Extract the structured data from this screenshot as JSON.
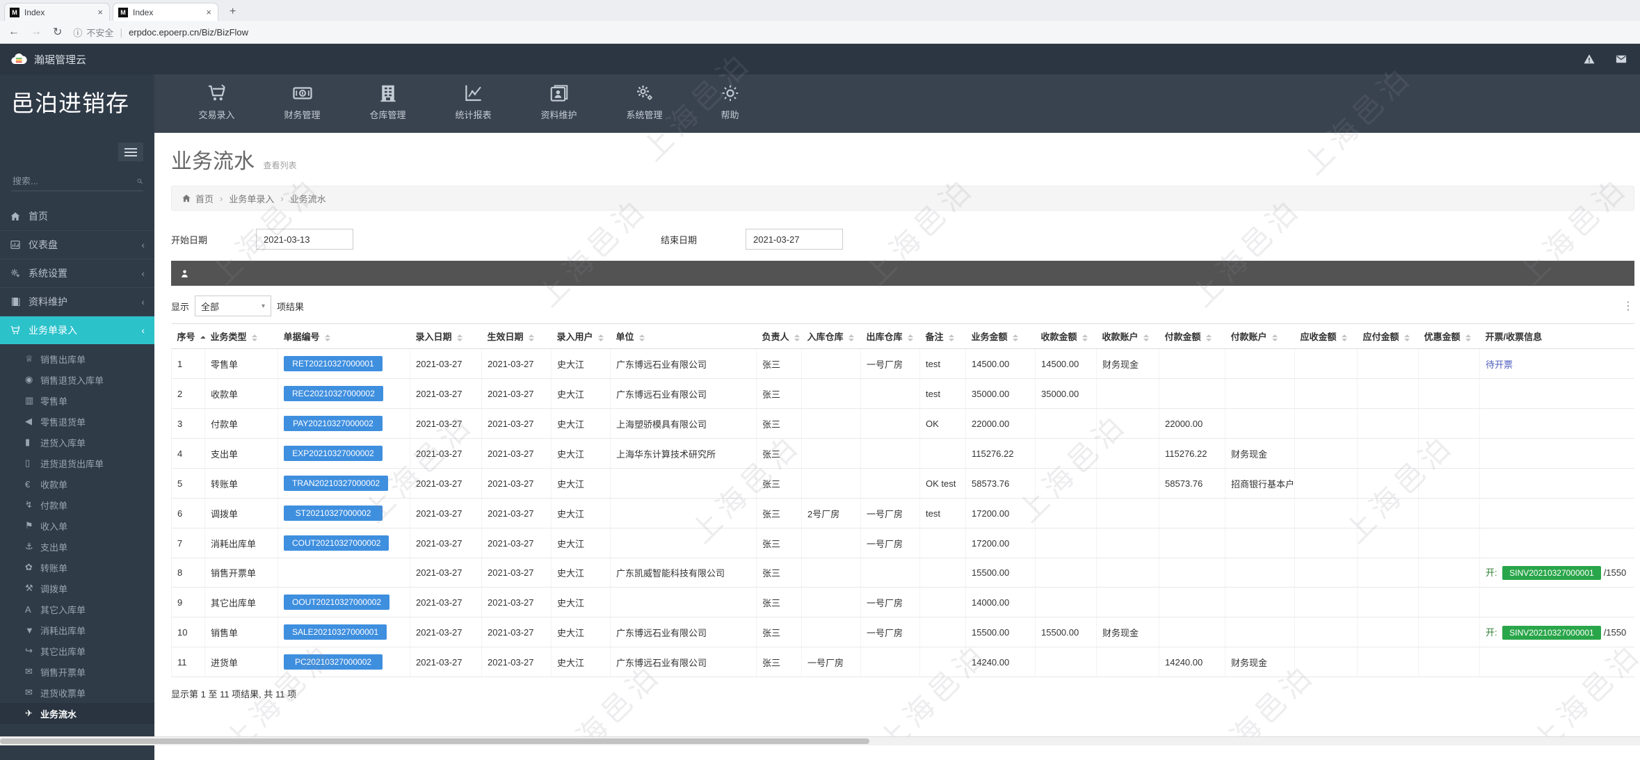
{
  "browser": {
    "tabs": [
      {
        "title": "Index"
      },
      {
        "title": "Index"
      }
    ],
    "new_tab": "+",
    "security_label": "不安全",
    "url": "erpdoc.epoerp.cn/Biz/BizFlow"
  },
  "header": {
    "app_title": "瀚琚管理云",
    "right_icons": [
      "warning-icon",
      "mail-icon"
    ]
  },
  "brand": {
    "title": "邑泊进销存"
  },
  "topnav": {
    "items": [
      {
        "label": "交易录入",
        "icon": "cart-icon"
      },
      {
        "label": "财务管理",
        "icon": "money-icon"
      },
      {
        "label": "仓库管理",
        "icon": "warehouse-icon"
      },
      {
        "label": "统计报表",
        "icon": "report-icon"
      },
      {
        "label": "资料维护",
        "icon": "idcard-icon"
      },
      {
        "label": "系统管理",
        "icon": "gears-icon"
      },
      {
        "label": "帮助",
        "icon": "help-icon"
      }
    ]
  },
  "sidebar": {
    "search_placeholder": "搜索...",
    "items": [
      {
        "label": "首页",
        "icon": "home-icon",
        "chevron": false,
        "active": false
      },
      {
        "label": "仪表盘",
        "icon": "dashboard-icon",
        "chevron": true,
        "active": false
      },
      {
        "label": "系统设置",
        "icon": "settings-icon",
        "chevron": true,
        "active": false
      },
      {
        "label": "资料维护",
        "icon": "book-icon",
        "chevron": true,
        "active": false
      },
      {
        "label": "业务单录入",
        "icon": "cart-icon",
        "chevron": true,
        "active": true
      }
    ],
    "subitems": [
      {
        "label": "销售出库单",
        "icon": "trophy-icon",
        "current": false
      },
      {
        "label": "销售退货入库单",
        "icon": "eye-icon",
        "current": false
      },
      {
        "label": "零售单",
        "icon": "barcode-icon",
        "current": false
      },
      {
        "label": "零售退货单",
        "icon": "megaphone-icon",
        "current": false
      },
      {
        "label": "进货入库单",
        "icon": "bookmark-icon",
        "current": false
      },
      {
        "label": "进货退货出库单",
        "icon": "bookmark-outline-icon",
        "current": false
      },
      {
        "label": "收款单",
        "icon": "coin-icon",
        "current": false
      },
      {
        "label": "付款单",
        "icon": "bolt-icon",
        "current": false
      },
      {
        "label": "收入单",
        "icon": "flag-icon",
        "current": false
      },
      {
        "label": "支出单",
        "icon": "anchor-icon",
        "current": false
      },
      {
        "label": "转账单",
        "icon": "leaf-icon",
        "current": false
      },
      {
        "label": "调拨单",
        "icon": "hammer-icon",
        "current": false
      },
      {
        "label": "其它入库单",
        "icon": "letter-a-icon",
        "current": false
      },
      {
        "label": "消耗出库单",
        "icon": "funnel-icon",
        "current": false
      },
      {
        "label": "其它出库单",
        "icon": "share-icon",
        "current": false
      },
      {
        "label": "销售开票单",
        "icon": "mail-filled-icon",
        "current": false
      },
      {
        "label": "进货收票单",
        "icon": "mail-outline-icon",
        "current": false
      },
      {
        "label": "业务流水",
        "icon": "plane-icon",
        "current": true
      }
    ]
  },
  "page": {
    "title": "业务流水",
    "subtitle": "查看列表",
    "breadcrumb": [
      "首页",
      "业务单录入",
      "业务流水"
    ],
    "filters": {
      "start_label": "开始日期",
      "start_value": "2021-03-13",
      "end_label": "结束日期",
      "end_value": "2021-03-27"
    },
    "show_label": "显示",
    "show_value": "全部",
    "show_suffix": "项结果",
    "footer_text": "显示第 1 至 11 项结果, 共 11 项",
    "watermark": "上海邑泊"
  },
  "table": {
    "columns": [
      {
        "key": "seq",
        "label": "序号",
        "sort": "asc"
      },
      {
        "key": "type",
        "label": "业务类型",
        "sort": "both"
      },
      {
        "key": "doc",
        "label": "单据编号",
        "sort": "both"
      },
      {
        "key": "entry_date",
        "label": "录入日期",
        "sort": "both"
      },
      {
        "key": "effective_date",
        "label": "生效日期",
        "sort": "both"
      },
      {
        "key": "user",
        "label": "录入用户",
        "sort": "both"
      },
      {
        "key": "company",
        "label": "单位",
        "sort": "both"
      },
      {
        "key": "owner",
        "label": "负责人",
        "sort": "both"
      },
      {
        "key": "in_wh",
        "label": "入库仓库",
        "sort": "both"
      },
      {
        "key": "out_wh",
        "label": "出库仓库",
        "sort": "both"
      },
      {
        "key": "note",
        "label": "备注",
        "sort": "both"
      },
      {
        "key": "amount",
        "label": "业务金额",
        "sort": "both"
      },
      {
        "key": "received",
        "label": "收款金额",
        "sort": "both"
      },
      {
        "key": "recv_account",
        "label": "收款账户",
        "sort": "both"
      },
      {
        "key": "paid",
        "label": "付款金额",
        "sort": "both"
      },
      {
        "key": "pay_account",
        "label": "付款账户",
        "sort": "both"
      },
      {
        "key": "receivable",
        "label": "应收金额",
        "sort": "both"
      },
      {
        "key": "payable",
        "label": "应付金额",
        "sort": "both"
      },
      {
        "key": "discount",
        "label": "优惠金额",
        "sort": "both"
      },
      {
        "key": "invoice",
        "label": "开票/收票信息",
        "sort": "none"
      }
    ],
    "rows": [
      {
        "seq": "1",
        "type": "零售单",
        "doc": "RET20210327000001",
        "entry_date": "2021-03-27",
        "effective_date": "2021-03-27",
        "user": "史大江",
        "company": "广东博远石业有限公司",
        "owner": "张三",
        "in_wh": "",
        "out_wh": "一号厂房",
        "note": "test",
        "amount": "14500.00",
        "received": "14500.00",
        "recv_account": "财务现金",
        "paid": "",
        "pay_account": "",
        "receivable": "",
        "payable": "",
        "discount": "",
        "invoice": {
          "link": "待开票"
        }
      },
      {
        "seq": "2",
        "type": "收款单",
        "doc": "REC20210327000002",
        "entry_date": "2021-03-27",
        "effective_date": "2021-03-27",
        "user": "史大江",
        "company": "广东博远石业有限公司",
        "owner": "张三",
        "in_wh": "",
        "out_wh": "",
        "note": "test",
        "amount": "35000.00",
        "received": "35000.00",
        "recv_account": "",
        "paid": "",
        "pay_account": "",
        "receivable": "",
        "payable": "",
        "discount": "",
        "invoice": ""
      },
      {
        "seq": "3",
        "type": "付款单",
        "doc": "PAY20210327000002",
        "entry_date": "2021-03-27",
        "effective_date": "2021-03-27",
        "user": "史大江",
        "company": "上海塑骄模具有限公司",
        "owner": "张三",
        "in_wh": "",
        "out_wh": "",
        "note": "OK",
        "amount": "22000.00",
        "received": "",
        "recv_account": "",
        "paid": "22000.00",
        "pay_account": "",
        "receivable": "",
        "payable": "",
        "discount": "",
        "invoice": ""
      },
      {
        "seq": "4",
        "type": "支出单",
        "doc": "EXP20210327000002",
        "entry_date": "2021-03-27",
        "effective_date": "2021-03-27",
        "user": "史大江",
        "company": "上海华东计算技术研究所",
        "owner": "张三",
        "in_wh": "",
        "out_wh": "",
        "note": "",
        "amount": "115276.22",
        "received": "",
        "recv_account": "",
        "paid": "115276.22",
        "pay_account": "财务现金",
        "receivable": "",
        "payable": "",
        "discount": "",
        "invoice": ""
      },
      {
        "seq": "5",
        "type": "转账单",
        "doc": "TRAN20210327000002",
        "entry_date": "2021-03-27",
        "effective_date": "2021-03-27",
        "user": "史大江",
        "company": "",
        "owner": "张三",
        "in_wh": "",
        "out_wh": "",
        "note": "OK test",
        "amount": "58573.76",
        "received": "",
        "recv_account": "",
        "paid": "58573.76",
        "pay_account": "招商银行基本户",
        "receivable": "",
        "payable": "",
        "discount": "",
        "invoice": ""
      },
      {
        "seq": "6",
        "type": "调拨单",
        "doc": "ST20210327000002",
        "entry_date": "2021-03-27",
        "effective_date": "2021-03-27",
        "user": "史大江",
        "company": "",
        "owner": "张三",
        "in_wh": "2号厂房",
        "out_wh": "一号厂房",
        "note": "test",
        "amount": "17200.00",
        "received": "",
        "recv_account": "",
        "paid": "",
        "pay_account": "",
        "receivable": "",
        "payable": "",
        "discount": "",
        "invoice": ""
      },
      {
        "seq": "7",
        "type": "消耗出库单",
        "doc": "COUT20210327000002",
        "entry_date": "2021-03-27",
        "effective_date": "2021-03-27",
        "user": "史大江",
        "company": "",
        "owner": "张三",
        "in_wh": "",
        "out_wh": "一号厂房",
        "note": "",
        "amount": "17200.00",
        "received": "",
        "recv_account": "",
        "paid": "",
        "pay_account": "",
        "receivable": "",
        "payable": "",
        "discount": "",
        "invoice": ""
      },
      {
        "seq": "8",
        "type": "销售开票单",
        "doc": "",
        "entry_date": "2021-03-27",
        "effective_date": "2021-03-27",
        "user": "史大江",
        "company": "广东凯威智能科技有限公司",
        "owner": "张三",
        "in_wh": "",
        "out_wh": "",
        "note": "",
        "amount": "15500.00",
        "received": "",
        "recv_account": "",
        "paid": "",
        "pay_account": "",
        "receivable": "",
        "payable": "",
        "discount": "",
        "invoice": {
          "prefix": "开:",
          "badge": "SINV20210327000001",
          "suffix": "/1550"
        }
      },
      {
        "seq": "9",
        "type": "其它出库单",
        "doc": "OOUT20210327000002",
        "entry_date": "2021-03-27",
        "effective_date": "2021-03-27",
        "user": "史大江",
        "company": "",
        "owner": "张三",
        "in_wh": "",
        "out_wh": "一号厂房",
        "note": "",
        "amount": "14000.00",
        "received": "",
        "recv_account": "",
        "paid": "",
        "pay_account": "",
        "receivable": "",
        "payable": "",
        "discount": "",
        "invoice": ""
      },
      {
        "seq": "10",
        "type": "销售单",
        "doc": "SALE20210327000001",
        "entry_date": "2021-03-27",
        "effective_date": "2021-03-27",
        "user": "史大江",
        "company": "广东博远石业有限公司",
        "owner": "张三",
        "in_wh": "",
        "out_wh": "一号厂房",
        "note": "",
        "amount": "15500.00",
        "received": "15500.00",
        "recv_account": "财务现金",
        "paid": "",
        "pay_account": "",
        "receivable": "",
        "payable": "",
        "discount": "",
        "invoice": {
          "prefix": "开:",
          "badge": "SINV20210327000001",
          "suffix": "/1550"
        }
      },
      {
        "seq": "11",
        "type": "进货单",
        "doc": "PC20210327000002",
        "entry_date": "2021-03-27",
        "effective_date": "2021-03-27",
        "user": "史大江",
        "company": "广东博远石业有限公司",
        "owner": "张三",
        "in_wh": "一号厂房",
        "out_wh": "",
        "note": "",
        "amount": "14240.00",
        "received": "",
        "recv_account": "",
        "paid": "14240.00",
        "pay_account": "财务现金",
        "receivable": "",
        "payable": "",
        "discount": "",
        "invoice": ""
      }
    ]
  },
  "colors": {
    "accent_teal": "#2bc2ca",
    "badge_blue": "#3f8fdf",
    "badge_green": "#2aa64a",
    "link": "#4d5bbe",
    "header_dark": "#2b3642",
    "sidebar_dark": "#303b48"
  }
}
